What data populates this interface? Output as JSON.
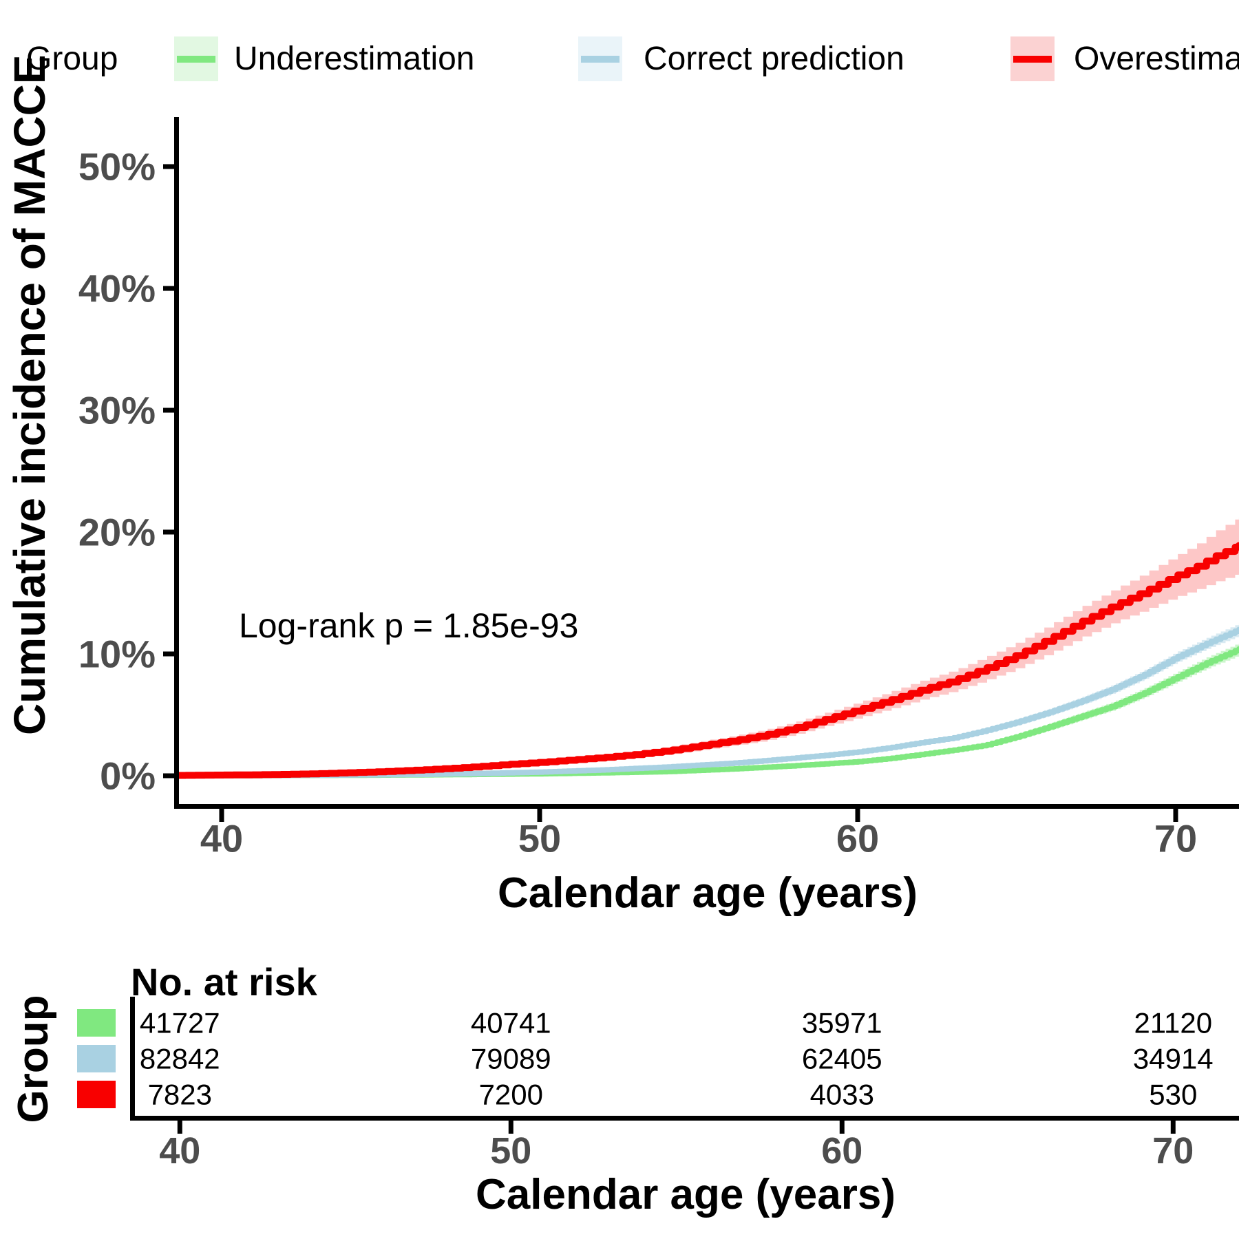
{
  "legend": {
    "title": "Group",
    "items": [
      {
        "label": "Underestimation",
        "line_color": "#80E880",
        "key_bg": "#E2F8E2"
      },
      {
        "label": "Correct prediction",
        "line_color": "#A9D1E2",
        "key_bg": "#EAF4F9"
      },
      {
        "label": "Overestimation",
        "line_color": "#F80000",
        "key_bg": "#FBD2D2"
      }
    ]
  },
  "annotations": {
    "logrank": "Log-rank p = 1.85e-93"
  },
  "chart_data": {
    "type": "line",
    "subtype": "cumulative-incidence-step-curves",
    "title": "",
    "xlabel": "Calendar age (years)",
    "ylabel": "Cumulative incidence of MACCE",
    "xlim": [
      38.57,
      71.99
    ],
    "ylim": [
      0,
      52
    ],
    "grid": false,
    "legend_position": "top",
    "x_ticks": [
      {
        "age": 40,
        "label": "40"
      },
      {
        "age": 50,
        "label": "50"
      },
      {
        "age": 60,
        "label": "60"
      },
      {
        "age": 70,
        "label": "70"
      }
    ],
    "y_ticks": [
      {
        "pct": 0,
        "label": "0%"
      },
      {
        "pct": 10,
        "label": "10%"
      },
      {
        "pct": 20,
        "label": "20%"
      },
      {
        "pct": 30,
        "label": "30%"
      },
      {
        "pct": 40,
        "label": "40%"
      },
      {
        "pct": 50,
        "label": "50%"
      }
    ],
    "series": [
      {
        "name": "Underestimation",
        "color": "#80E880",
        "band_color": "rgba(128,232,128,0.40)",
        "step": 0.15,
        "width": 8,
        "points": [
          [
            38.57,
            0.0,
            0.02
          ],
          [
            44,
            0.04,
            0.02
          ],
          [
            46,
            0.07,
            0.03
          ],
          [
            48,
            0.11,
            0.04
          ],
          [
            50,
            0.16,
            0.05
          ],
          [
            52,
            0.24,
            0.06
          ],
          [
            54,
            0.34,
            0.08
          ],
          [
            56,
            0.55,
            0.1
          ],
          [
            58,
            0.82,
            0.12
          ],
          [
            60,
            1.15,
            0.14
          ],
          [
            61,
            1.42,
            0.16
          ],
          [
            62,
            1.75,
            0.18
          ],
          [
            63,
            2.1,
            0.2
          ],
          [
            64,
            2.5,
            0.22
          ],
          [
            65,
            3.2,
            0.25
          ],
          [
            66,
            4.0,
            0.28
          ],
          [
            67,
            4.85,
            0.31
          ],
          [
            68,
            5.7,
            0.34
          ],
          [
            69,
            6.8,
            0.38
          ],
          [
            70,
            8.05,
            0.42
          ],
          [
            71,
            9.3,
            0.46
          ],
          [
            71.99,
            10.4,
            0.5
          ]
        ]
      },
      {
        "name": "Correct prediction",
        "color": "#A9D1E2",
        "band_color": "rgba(169,209,226,0.45)",
        "step": 0.15,
        "width": 8,
        "points": [
          [
            38.57,
            0.0,
            0.02
          ],
          [
            42,
            0.03,
            0.02
          ],
          [
            44,
            0.06,
            0.03
          ],
          [
            46,
            0.1,
            0.04
          ],
          [
            48,
            0.18,
            0.05
          ],
          [
            50,
            0.3,
            0.06
          ],
          [
            52,
            0.48,
            0.08
          ],
          [
            54,
            0.72,
            0.1
          ],
          [
            56,
            1.02,
            0.12
          ],
          [
            57,
            1.22,
            0.13
          ],
          [
            58,
            1.45,
            0.14
          ],
          [
            59,
            1.68,
            0.15
          ],
          [
            60,
            1.95,
            0.17
          ],
          [
            61,
            2.3,
            0.18
          ],
          [
            62,
            2.72,
            0.2
          ],
          [
            63,
            3.1,
            0.22
          ],
          [
            64,
            3.7,
            0.24
          ],
          [
            65,
            4.4,
            0.26
          ],
          [
            66,
            5.2,
            0.28
          ],
          [
            67,
            6.1,
            0.31
          ],
          [
            68,
            7.1,
            0.34
          ],
          [
            69,
            8.3,
            0.38
          ],
          [
            70,
            9.7,
            0.42
          ],
          [
            71,
            10.9,
            0.46
          ],
          [
            71.99,
            12.0,
            0.5
          ]
        ]
      },
      {
        "name": "Overestimation",
        "color": "#F80000",
        "band_color": "rgba(248,0,0,0.22)",
        "step": 0.3,
        "width": 10,
        "points": [
          [
            38.57,
            0.03,
            0.03
          ],
          [
            40,
            0.06,
            0.04
          ],
          [
            41,
            0.08,
            0.05
          ],
          [
            42,
            0.12,
            0.06
          ],
          [
            43,
            0.17,
            0.07
          ],
          [
            44,
            0.25,
            0.09
          ],
          [
            45,
            0.34,
            0.1
          ],
          [
            46,
            0.45,
            0.12
          ],
          [
            47,
            0.58,
            0.14
          ],
          [
            48,
            0.74,
            0.16
          ],
          [
            49,
            0.93,
            0.18
          ],
          [
            50,
            1.1,
            0.2
          ],
          [
            51,
            1.3,
            0.23
          ],
          [
            52,
            1.5,
            0.26
          ],
          [
            53,
            1.75,
            0.29
          ],
          [
            54,
            2.05,
            0.32
          ],
          [
            55,
            2.45,
            0.36
          ],
          [
            56,
            2.85,
            0.4
          ],
          [
            57,
            3.3,
            0.45
          ],
          [
            58,
            3.9,
            0.5
          ],
          [
            59,
            4.65,
            0.55
          ],
          [
            60,
            5.4,
            0.62
          ],
          [
            61,
            6.2,
            0.7
          ],
          [
            62,
            7.05,
            0.78
          ],
          [
            63,
            7.8,
            0.85
          ],
          [
            64,
            8.8,
            0.95
          ],
          [
            65,
            9.9,
            1.05
          ],
          [
            66,
            11.2,
            1.15
          ],
          [
            67,
            12.6,
            1.25
          ],
          [
            68,
            13.9,
            1.35
          ],
          [
            69,
            15.1,
            1.5
          ],
          [
            70,
            16.4,
            1.7
          ],
          [
            70.6,
            17.1,
            1.85
          ],
          [
            71.3,
            18.1,
            2.1
          ],
          [
            71.99,
            18.9,
            2.3
          ]
        ]
      }
    ]
  },
  "risk_table": {
    "title": "No. at risk",
    "group_axis_label": "Group",
    "xlabel": "Calendar age (years)",
    "ticks": [
      {
        "age": 40,
        "label": "40"
      },
      {
        "age": 50,
        "label": "50"
      },
      {
        "age": 60,
        "label": "60"
      },
      {
        "age": 70,
        "label": "70"
      }
    ],
    "rows": [
      {
        "group": "Underestimation",
        "color": "#80E880",
        "counts": [
          "41727",
          "40741",
          "35971",
          "21120"
        ]
      },
      {
        "group": "Correct prediction",
        "color": "#A9D1E2",
        "counts": [
          "82842",
          "79089",
          "62405",
          "34914"
        ]
      },
      {
        "group": "Overestimation",
        "color": "#F80000",
        "counts": [
          "7823",
          "7200",
          "4033",
          "530"
        ]
      }
    ]
  },
  "styles": {
    "tick_label_color": "#4d4d4d",
    "axis_color": "#000000"
  }
}
